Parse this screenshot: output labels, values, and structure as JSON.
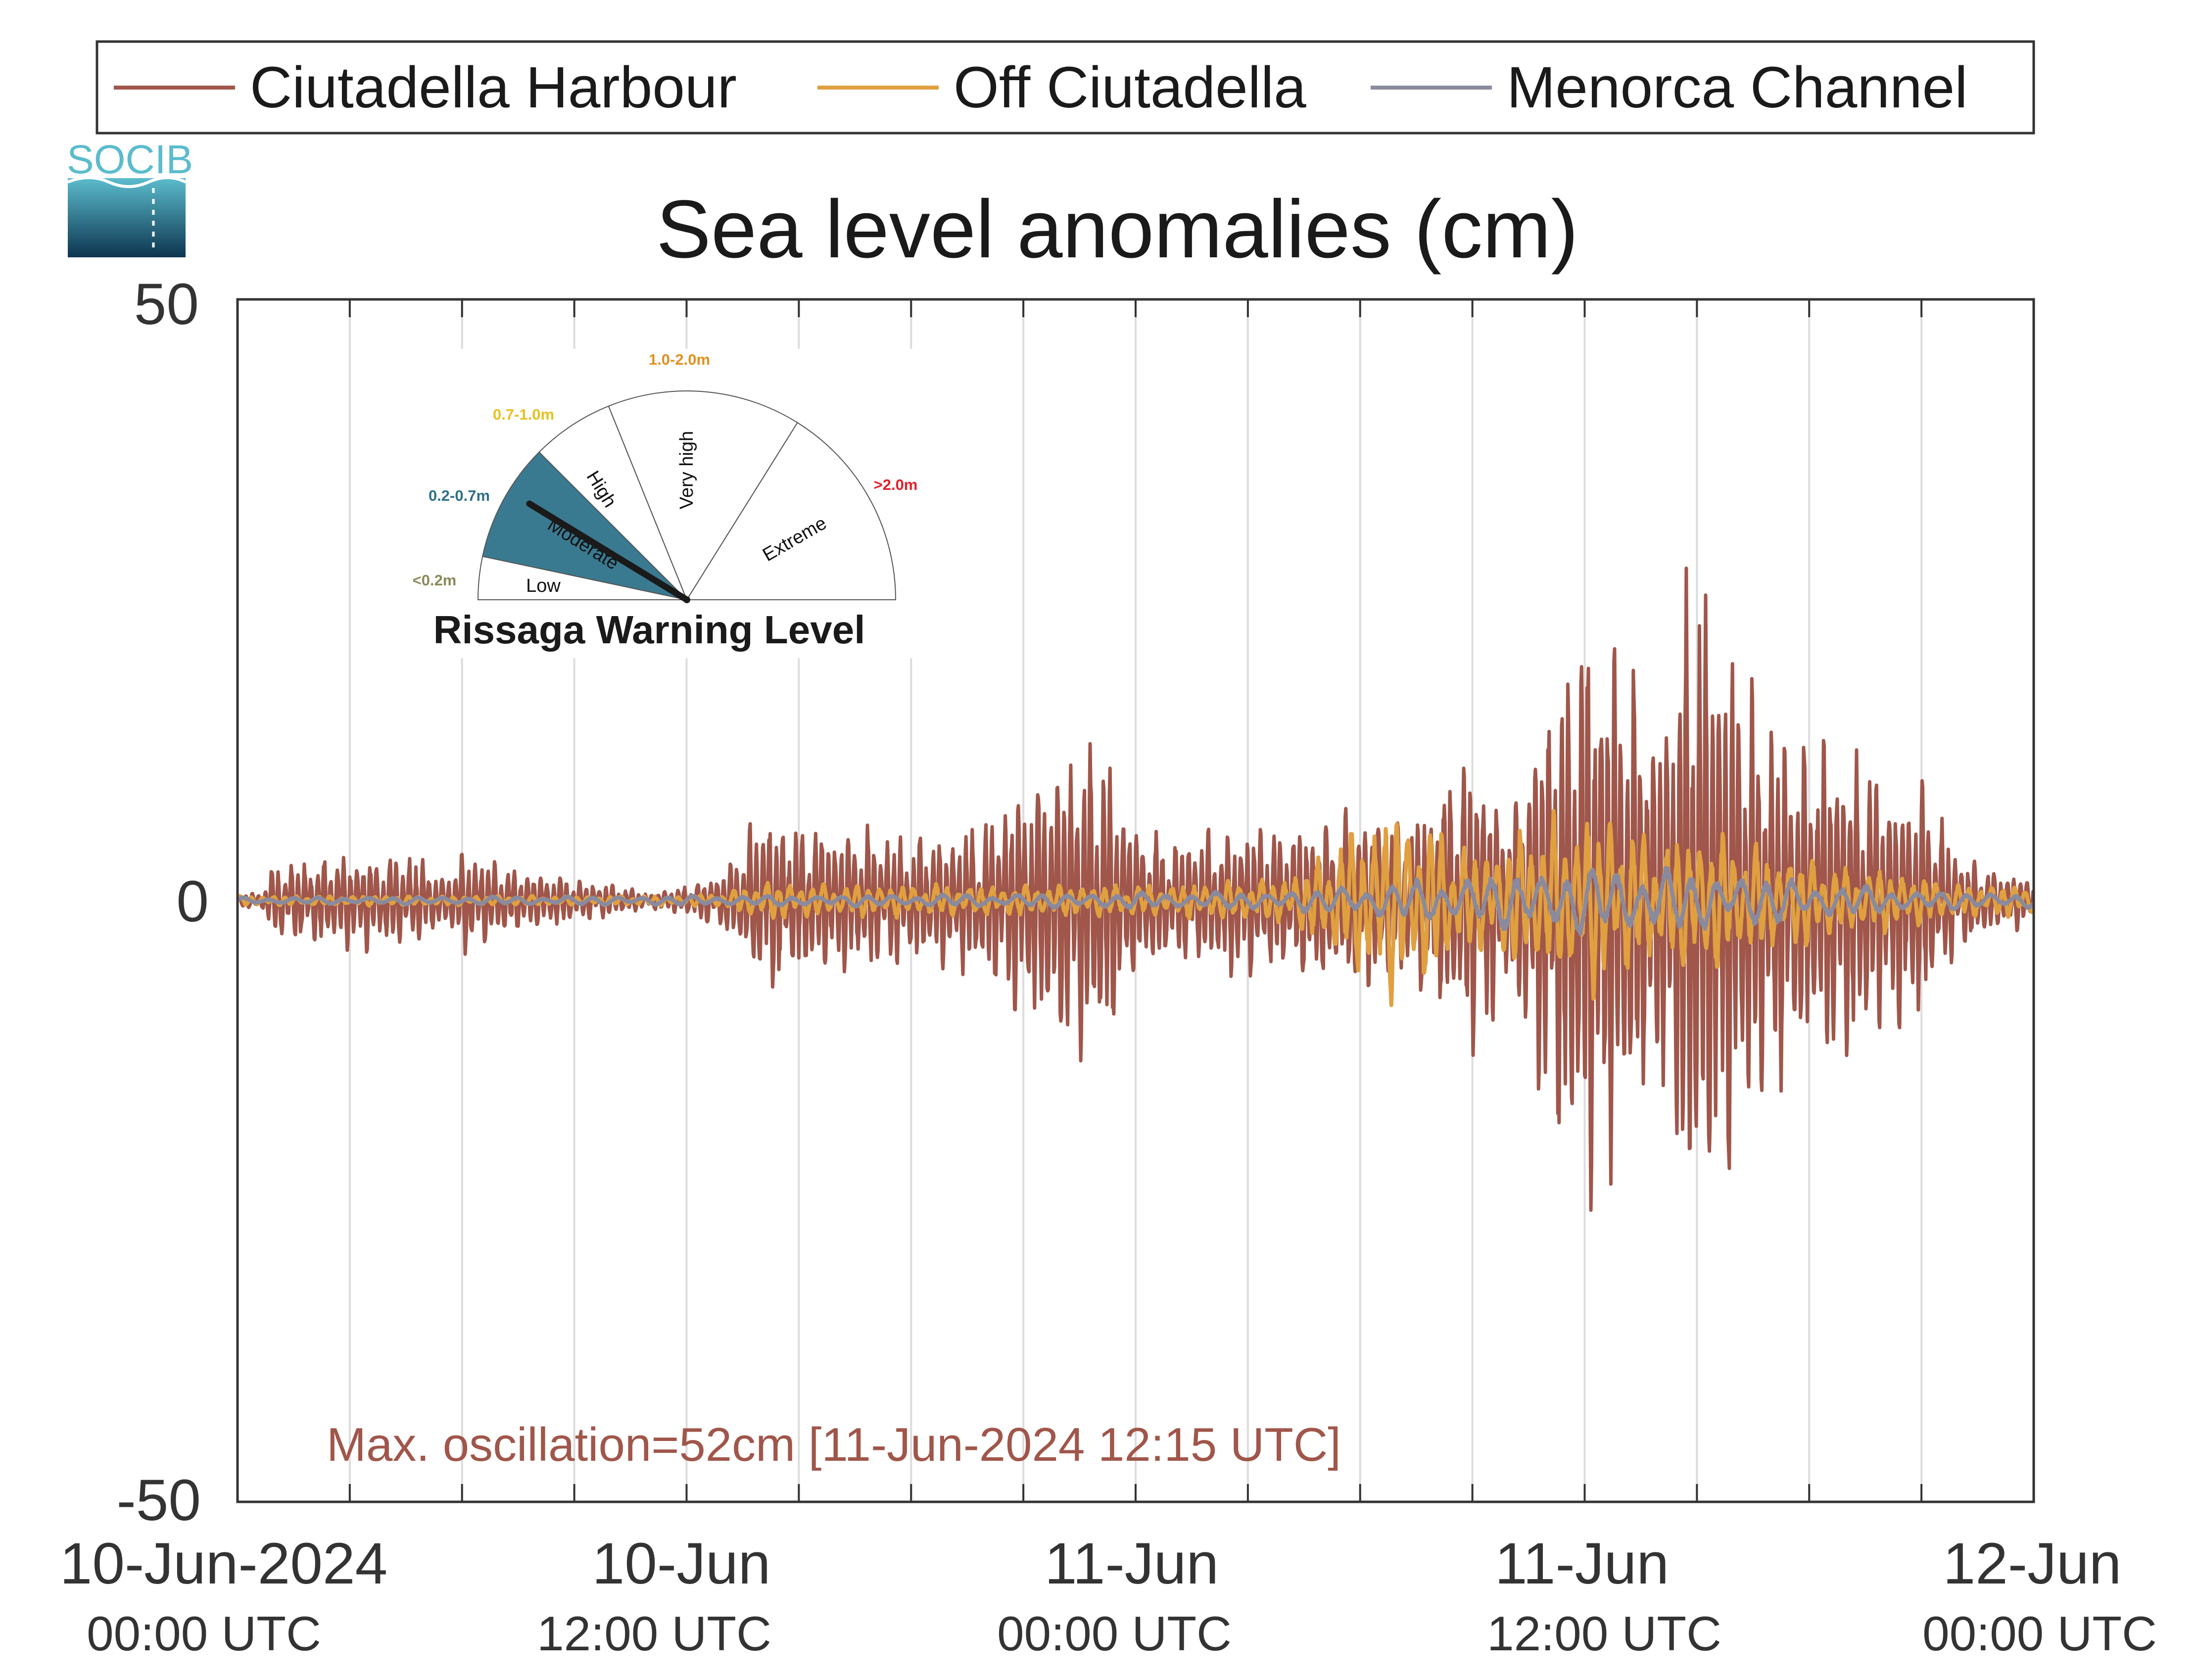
{
  "logo": {
    "text": "SOCIB"
  },
  "chart_data": {
    "type": "line",
    "title": "Sea level anomalies (cm)",
    "ylabel": "",
    "xlabel": "",
    "ylim": [
      -50,
      50
    ],
    "xlim_hours": [
      0,
      48
    ],
    "yticks": [
      "50",
      "0",
      "-50"
    ],
    "xticks": [
      {
        "date": "10-Jun-2024",
        "time": "00:00 UTC"
      },
      {
        "date": "10-Jun",
        "time": "12:00 UTC"
      },
      {
        "date": "11-Jun",
        "time": "00:00 UTC"
      },
      {
        "date": "11-Jun",
        "time": "12:00 UTC"
      },
      {
        "date": "12-Jun",
        "time": "00:00 UTC"
      }
    ],
    "grid": "vertical",
    "legend_position": "top",
    "series": [
      {
        "name": "Ciutadella Harbour",
        "color": "#a0564a",
        "period_min": 10.5,
        "envelope_hours": [
          0,
          0.6,
          1,
          3,
          5,
          5.5,
          6,
          7.5,
          9,
          11,
          12,
          13,
          14,
          15,
          16,
          18,
          20,
          22,
          23,
          24,
          25,
          27,
          28,
          30,
          31,
          32,
          33,
          34,
          35,
          36,
          37,
          38,
          39,
          40,
          41,
          42,
          43,
          44,
          45,
          46,
          47,
          48
        ],
        "envelope_cm": [
          0.5,
          0.5,
          2.5,
          3,
          3,
          1.5,
          3.5,
          2,
          1.5,
          0.5,
          1,
          2,
          6,
          5,
          5,
          4,
          5,
          10,
          11,
          5,
          4,
          5,
          5,
          6,
          5,
          7,
          10,
          6,
          14,
          20,
          16,
          12,
          24,
          16,
          12,
          10,
          11,
          8,
          8,
          3,
          2,
          1.5
        ],
        "max_oscillation": "52cm",
        "max_time": "11-Jun-2024 12:15 UTC"
      },
      {
        "name": "Off Ciutadella",
        "color": "#e0a040",
        "period_min": 18,
        "envelope_hours": [
          0,
          12,
          13,
          14,
          16,
          20,
          22,
          25,
          28,
          29,
          30,
          31,
          32,
          33,
          34,
          35,
          36,
          37,
          38,
          39,
          40,
          41,
          42,
          43,
          44,
          45,
          46,
          47,
          48
        ],
        "envelope_cm": [
          0.3,
          0.3,
          0.5,
          1.2,
          1,
          1,
          1,
          1,
          1.5,
          3,
          5,
          6,
          5,
          3,
          4,
          5,
          6,
          5,
          4,
          5,
          4,
          3,
          3,
          2,
          2,
          1.5,
          1,
          1,
          1
        ],
        "max_oscillation": "",
        "max_time": ""
      },
      {
        "name": "Menorca Channel",
        "color": "#8a8a9e",
        "period_min": 40,
        "envelope_hours": [
          0,
          12,
          20,
          28,
          31,
          34,
          36,
          38,
          40,
          42,
          44,
          46,
          48
        ],
        "envelope_cm": [
          0.2,
          0.3,
          0.4,
          0.6,
          1.2,
          1.8,
          2.2,
          2,
          1.8,
          1.2,
          0.8,
          0.5,
          0.5
        ],
        "max_oscillation": "",
        "max_time": ""
      }
    ],
    "annotation": "Max. oscillation=52cm [11-Jun-2024 12:15 UTC]",
    "annotation_color": "#a0564a"
  },
  "gauge": {
    "title": "Rissaga Warning Level",
    "current_level": "Moderate",
    "bands": [
      {
        "category": "Low",
        "range": "<0.2m",
        "range_color": "#8a8a5a",
        "active": false
      },
      {
        "category": "Moderate",
        "range": "0.2-0.7m",
        "range_color": "#2f6f8a",
        "active": true,
        "fill": "#3a7a90"
      },
      {
        "category": "High",
        "range": "0.7-1.0m",
        "range_color": "#e8c020",
        "active": false
      },
      {
        "category": "Very high",
        "range": "1.0-2.0m",
        "range_color": "#e09020",
        "active": false
      },
      {
        "category": "Extreme",
        "range": ">2.0m",
        "range_color": "#e0202a",
        "active": false
      }
    ]
  }
}
